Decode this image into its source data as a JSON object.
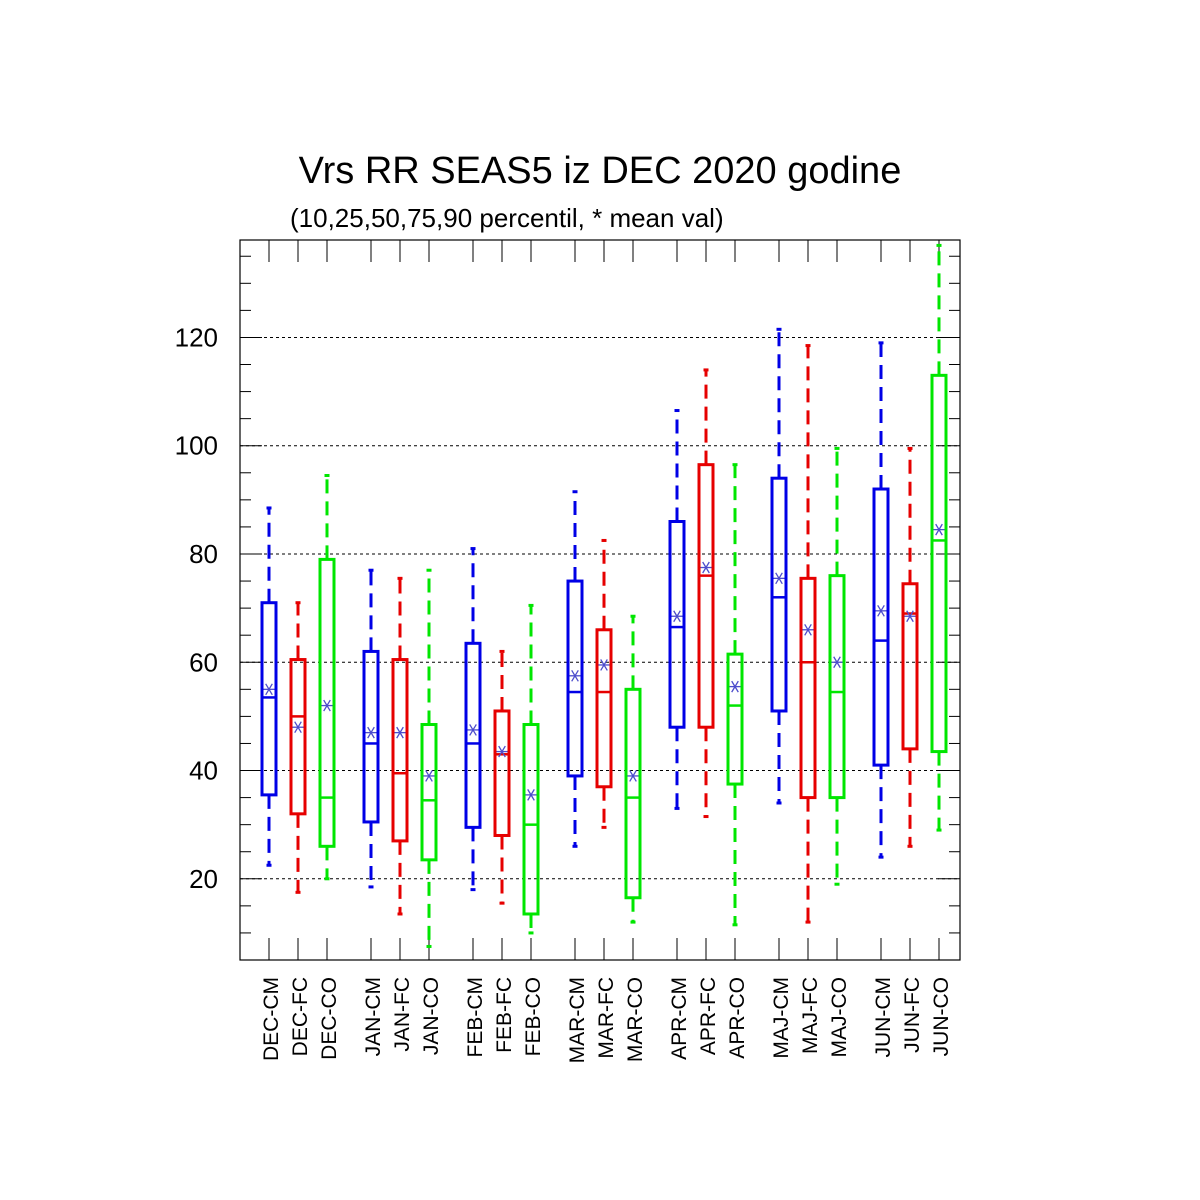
{
  "chart_data": {
    "type": "boxplot",
    "title": "Vrs RR SEAS5 iz DEC 2020 godine",
    "subtitle": "(10,25,50,75,90 percentil, * mean val)",
    "ylim": [
      5,
      138
    ],
    "yticks": [
      20,
      40,
      60,
      80,
      100,
      120
    ],
    "grid": true,
    "colors": {
      "CM": "#0000e6",
      "FC": "#e60000",
      "CO": "#00e600",
      "mean_marker": "#4d4dcc"
    },
    "boxes": [
      {
        "label": "DEC-CM",
        "group": "CM",
        "p10": 22.5,
        "p25": 35.5,
        "p50": 53.5,
        "p75": 71.0,
        "p90": 88.5,
        "mean": 55.0
      },
      {
        "label": "DEC-FC",
        "group": "FC",
        "p10": 17.5,
        "p25": 32.0,
        "p50": 50.0,
        "p75": 60.5,
        "p90": 71.0,
        "mean": 48.0
      },
      {
        "label": "DEC-CO",
        "group": "CO",
        "p10": 20.0,
        "p25": 26.0,
        "p50": 35.0,
        "p75": 79.0,
        "p90": 94.5,
        "mean": 52.0
      },
      {
        "label": "JAN-CM",
        "group": "CM",
        "p10": 18.5,
        "p25": 30.5,
        "p50": 45.0,
        "p75": 62.0,
        "p90": 77.0,
        "mean": 47.0
      },
      {
        "label": "JAN-FC",
        "group": "FC",
        "p10": 13.5,
        "p25": 27.0,
        "p50": 39.5,
        "p75": 60.5,
        "p90": 75.5,
        "mean": 47.0
      },
      {
        "label": "JAN-CO",
        "group": "CO",
        "p10": 7.5,
        "p25": 23.5,
        "p50": 34.5,
        "p75": 48.5,
        "p90": 77.0,
        "mean": 39.0
      },
      {
        "label": "FEB-CM",
        "group": "CM",
        "p10": 18.0,
        "p25": 29.5,
        "p50": 45.0,
        "p75": 63.5,
        "p90": 81.0,
        "mean": 47.5
      },
      {
        "label": "FEB-FC",
        "group": "FC",
        "p10": 15.5,
        "p25": 28.0,
        "p50": 43.0,
        "p75": 51.0,
        "p90": 62.0,
        "mean": 43.5
      },
      {
        "label": "FEB-CO",
        "group": "CO",
        "p10": 10.0,
        "p25": 13.5,
        "p50": 30.0,
        "p75": 48.5,
        "p90": 70.5,
        "mean": 35.5
      },
      {
        "label": "MAR-CM",
        "group": "CM",
        "p10": 26.0,
        "p25": 39.0,
        "p50": 54.5,
        "p75": 75.0,
        "p90": 91.5,
        "mean": 57.5
      },
      {
        "label": "MAR-FC",
        "group": "FC",
        "p10": 29.5,
        "p25": 37.0,
        "p50": 54.5,
        "p75": 66.0,
        "p90": 82.5,
        "mean": 59.5
      },
      {
        "label": "MAR-CO",
        "group": "CO",
        "p10": 12.0,
        "p25": 16.5,
        "p50": 35.0,
        "p75": 55.0,
        "p90": 68.5,
        "mean": 39.0
      },
      {
        "label": "APR-CM",
        "group": "CM",
        "p10": 33.0,
        "p25": 48.0,
        "p50": 66.5,
        "p75": 86.0,
        "p90": 106.5,
        "mean": 68.5
      },
      {
        "label": "APR-FC",
        "group": "FC",
        "p10": 31.5,
        "p25": 48.0,
        "p50": 76.0,
        "p75": 96.5,
        "p90": 114.0,
        "mean": 77.5
      },
      {
        "label": "APR-CO",
        "group": "CO",
        "p10": 11.5,
        "p25": 37.5,
        "p50": 52.0,
        "p75": 61.5,
        "p90": 96.5,
        "mean": 55.5
      },
      {
        "label": "MAJ-CM",
        "group": "CM",
        "p10": 34.0,
        "p25": 51.0,
        "p50": 72.0,
        "p75": 94.0,
        "p90": 121.5,
        "mean": 75.5
      },
      {
        "label": "MAJ-FC",
        "group": "FC",
        "p10": 12.0,
        "p25": 35.0,
        "p50": 60.0,
        "p75": 75.5,
        "p90": 118.5,
        "mean": 66.0
      },
      {
        "label": "MAJ-CO",
        "group": "CO",
        "p10": 19.0,
        "p25": 35.0,
        "p50": 54.5,
        "p75": 76.0,
        "p90": 99.5,
        "mean": 60.0
      },
      {
        "label": "JUN-CM",
        "group": "CM",
        "p10": 24.0,
        "p25": 41.0,
        "p50": 64.0,
        "p75": 92.0,
        "p90": 119.0,
        "mean": 69.5
      },
      {
        "label": "JUN-FC",
        "group": "FC",
        "p10": 26.0,
        "p25": 44.0,
        "p50": 69.0,
        "p75": 74.5,
        "p90": 99.5,
        "mean": 68.5
      },
      {
        "label": "JUN-CO",
        "group": "CO",
        "p10": 29.0,
        "p25": 43.5,
        "p50": 82.5,
        "p75": 113.0,
        "p90": 137.0,
        "mean": 84.5
      }
    ]
  }
}
